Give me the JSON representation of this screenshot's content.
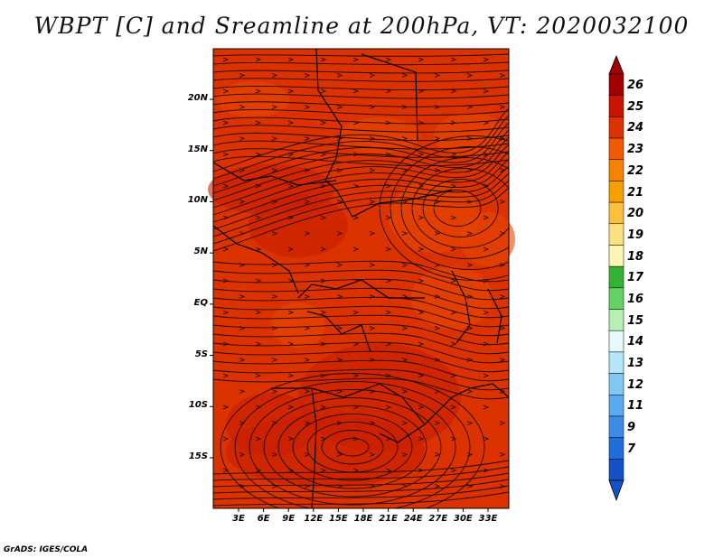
{
  "title": "WBPT [C] and Sreamline at 200hPa, VT: 2020032100",
  "footer": "GrADS: IGES/COLA",
  "lat_labels": [
    "20N",
    "15N",
    "10N",
    "5N",
    "EQ",
    "5S",
    "10S",
    "15S"
  ],
  "lat_values": [
    20,
    15,
    10,
    5,
    0,
    -5,
    -10,
    -15
  ],
  "lon_labels": [
    "3E",
    "6E",
    "9E",
    "12E",
    "15E",
    "18E",
    "21E",
    "24E",
    "27E",
    "30E",
    "33E"
  ],
  "lon_values": [
    3,
    6,
    9,
    12,
    15,
    18,
    21,
    24,
    27,
    30,
    33
  ],
  "colorbar": {
    "labels": [
      "26",
      "25",
      "24",
      "23",
      "22",
      "21",
      "20",
      "19",
      "18",
      "17",
      "16",
      "15",
      "14",
      "13",
      "12",
      "11",
      "9",
      "7"
    ],
    "colors": [
      "#a00000",
      "#c81400",
      "#dc3200",
      "#f05a00",
      "#f58200",
      "#f5a000",
      "#fac03c",
      "#fce080",
      "#fcf5b4",
      "#32b432",
      "#64d264",
      "#b4f0b4",
      "#e6fafa",
      "#b4e6fa",
      "#82c8f5",
      "#5aaaf0",
      "#3c8ce6",
      "#1e6edc",
      "#1450c8"
    ],
    "top_color": "#a00000",
    "bottom_color": "#1450c8"
  },
  "map_fill": {
    "base": "#dc3200",
    "darker": "#c81e00",
    "lighter": "#e64600"
  }
}
